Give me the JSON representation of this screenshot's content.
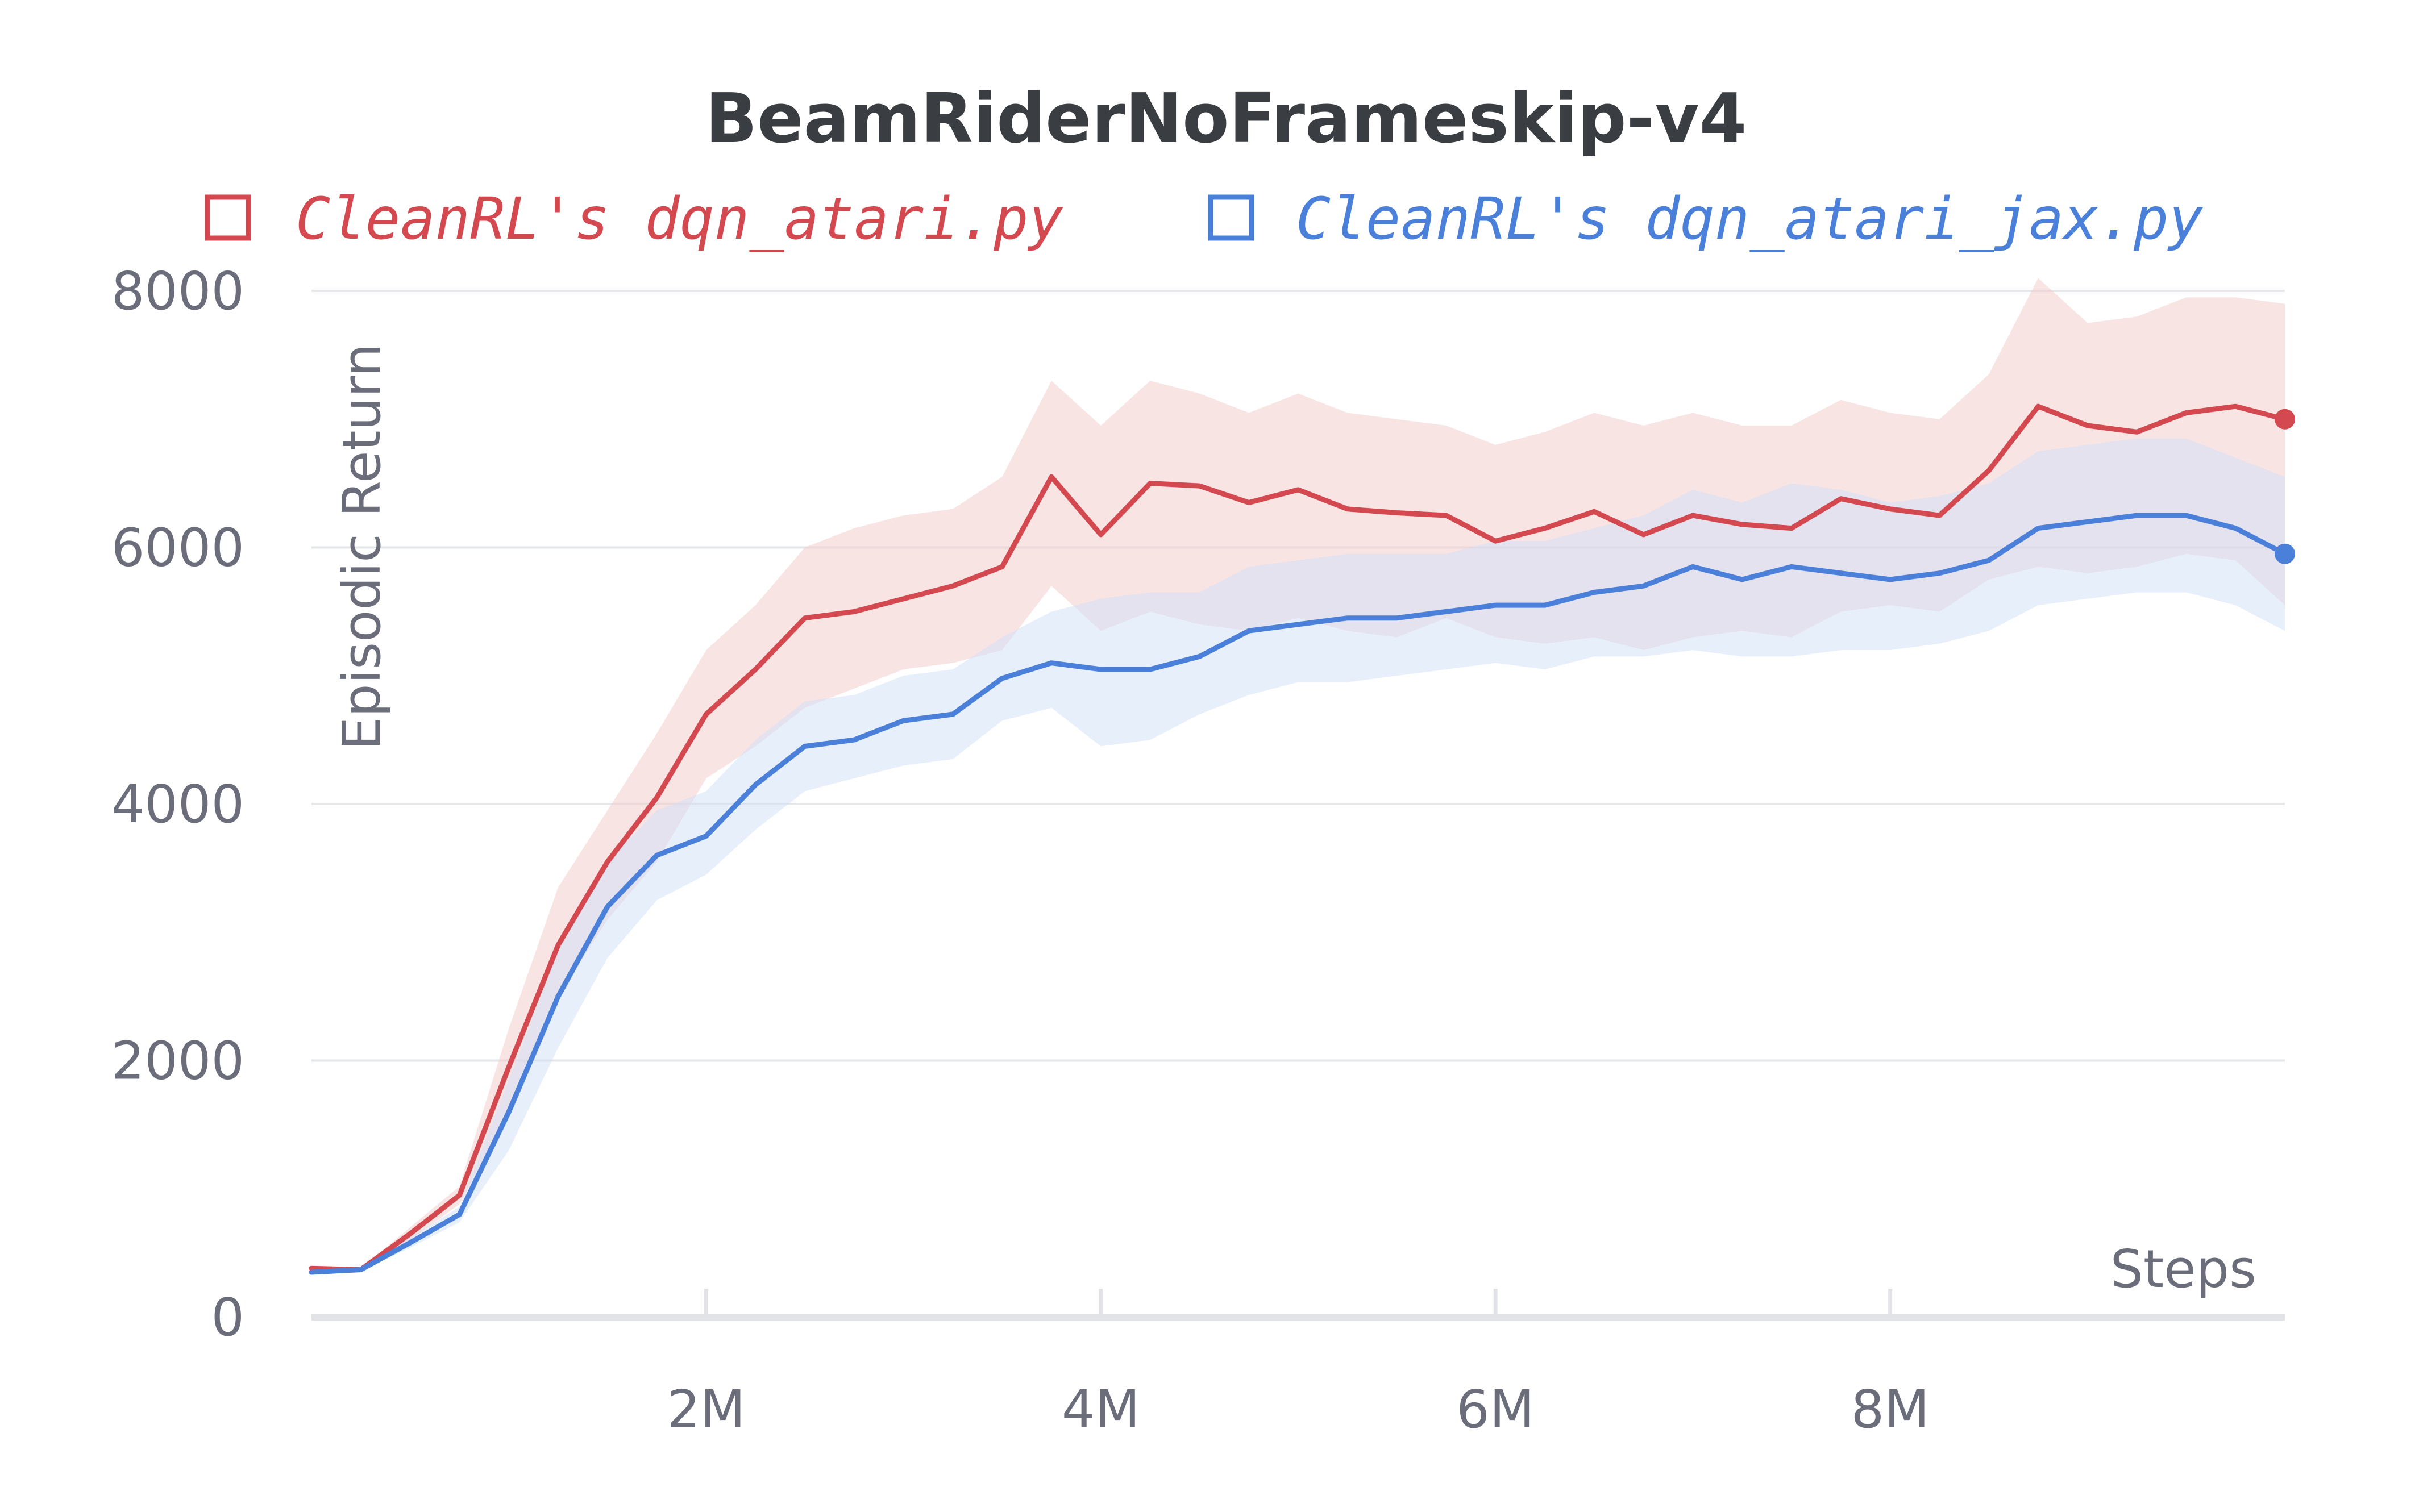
{
  "chart_data": {
    "type": "line",
    "title": "BeamRiderNoFrameskip-v4",
    "xlabel": "Steps",
    "ylabel": "Episodic Return",
    "xlim": [
      0,
      10000000
    ],
    "ylim": [
      0,
      8000
    ],
    "x_ticks": [
      2000000,
      4000000,
      6000000,
      8000000
    ],
    "x_tick_labels": [
      "2M",
      "4M",
      "6M",
      "8M"
    ],
    "y_ticks": [
      0,
      2000,
      4000,
      6000,
      8000
    ],
    "y_tick_labels": [
      "0",
      "2000",
      "4000",
      "6000",
      "8000"
    ],
    "grid": "horizontal",
    "legend_position": "top",
    "x": [
      0,
      250000,
      500000,
      750000,
      1000000,
      1250000,
      1500000,
      1750000,
      2000000,
      2250000,
      2500000,
      2750000,
      3000000,
      3250000,
      3500000,
      3750000,
      4000000,
      4250000,
      4500000,
      4750000,
      5000000,
      5250000,
      5500000,
      5750000,
      6000000,
      6250000,
      6500000,
      6750000,
      7000000,
      7250000,
      7500000,
      7750000,
      8000000,
      8250000,
      8500000,
      8750000,
      9000000,
      9250000,
      9500000,
      9750000,
      10000000
    ],
    "series": [
      {
        "name": "CleanRL's dqn_atari.py",
        "color": "#d4494f",
        "band_color": "#f4c9ca",
        "values": [
          380,
          370,
          650,
          950,
          1950,
          2900,
          3550,
          4050,
          4700,
          5050,
          5450,
          5500,
          5600,
          5700,
          5850,
          6550,
          6100,
          6500,
          6480,
          6350,
          6450,
          6300,
          6270,
          6250,
          6050,
          6150,
          6280,
          6100,
          6250,
          6180,
          6150,
          6380,
          6300,
          6250,
          6600,
          7100,
          6950,
          6900,
          7050,
          7100,
          7000
        ],
        "lower": [
          370,
          360,
          600,
          880,
          1600,
          2500,
          3100,
          3550,
          4200,
          4450,
          4750,
          4900,
          5050,
          5100,
          5200,
          5700,
          5350,
          5500,
          5400,
          5350,
          5450,
          5350,
          5300,
          5450,
          5300,
          5250,
          5300,
          5200,
          5300,
          5350,
          5300,
          5500,
          5550,
          5500,
          5750,
          5850,
          5800,
          5850,
          5950,
          5900,
          5550
        ],
        "upper": [
          390,
          380,
          700,
          1020,
          2250,
          3350,
          3950,
          4550,
          5200,
          5550,
          6000,
          6150,
          6250,
          6300,
          6550,
          7300,
          6950,
          7300,
          7200,
          7050,
          7200,
          7050,
          7000,
          6950,
          6800,
          6900,
          7050,
          6950,
          7050,
          6950,
          6950,
          7150,
          7050,
          7000,
          7350,
          8100,
          7750,
          7800,
          7950,
          7950,
          7900
        ]
      },
      {
        "name": "CleanRL's dqn_atari_jax.py",
        "color": "#4a80d9",
        "band_color": "#cfe0f8",
        "values": [
          350,
          370,
          580,
          800,
          1600,
          2500,
          3200,
          3600,
          3750,
          4150,
          4450,
          4500,
          4650,
          4700,
          4980,
          5100,
          5050,
          5050,
          5150,
          5350,
          5400,
          5450,
          5450,
          5500,
          5550,
          5550,
          5650,
          5700,
          5850,
          5750,
          5850,
          5800,
          5750,
          5800,
          5900,
          6150,
          6200,
          6250,
          6250,
          6150,
          5950
        ],
        "lower": [
          340,
          360,
          540,
          740,
          1300,
          2100,
          2800,
          3250,
          3450,
          3800,
          4100,
          4200,
          4300,
          4350,
          4650,
          4750,
          4450,
          4500,
          4700,
          4850,
          4950,
          4950,
          5000,
          5050,
          5100,
          5050,
          5150,
          5150,
          5200,
          5150,
          5150,
          5200,
          5200,
          5250,
          5350,
          5550,
          5600,
          5650,
          5650,
          5550,
          5350
        ],
        "upper": [
          360,
          380,
          620,
          860,
          1850,
          2850,
          3550,
          3950,
          4100,
          4500,
          4800,
          4850,
          5000,
          5050,
          5300,
          5500,
          5600,
          5650,
          5650,
          5850,
          5900,
          5950,
          5950,
          5950,
          6050,
          6050,
          6150,
          6250,
          6450,
          6350,
          6500,
          6450,
          6350,
          6400,
          6500,
          6750,
          6800,
          6850,
          6850,
          6700,
          6550
        ]
      }
    ]
  }
}
